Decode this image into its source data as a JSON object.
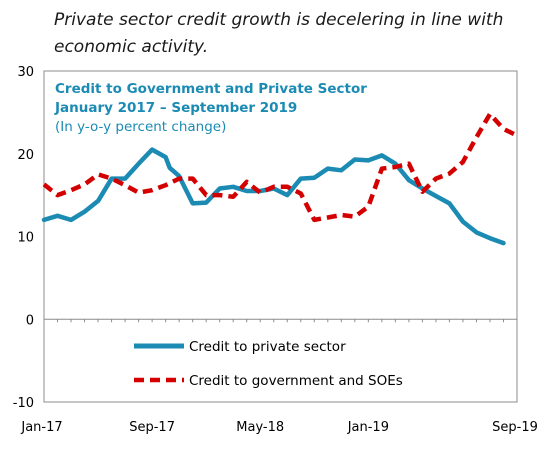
{
  "caption": "Private sector credit growth is decelering  in line with economic activity.",
  "chart_data": {
    "type": "line",
    "title": "Credit to Government and Private Sector",
    "subtitle": "January 2017 – September 2019",
    "units_note": "(In y-o-y percent change)",
    "xlabel": "",
    "ylabel": "",
    "ylim": [
      -10,
      30
    ],
    "yticks": [
      -10,
      0,
      10,
      20,
      30
    ],
    "xtick_labels": [
      "Jan-17",
      "Sep-17",
      "May-18",
      "Jan-19",
      "Sep-19"
    ],
    "xtick_months": [
      0,
      8,
      16,
      24,
      32
    ],
    "grid": false,
    "legend_position": "lower-center",
    "series": [
      {
        "name": "Credit to private sector",
        "color": "#1b8bb4",
        "style": "solid",
        "points": [
          [
            0,
            12.0
          ],
          [
            1,
            12.5
          ],
          [
            2,
            12.0
          ],
          [
            3,
            13.0
          ],
          [
            4,
            14.3
          ],
          [
            5,
            17.0
          ],
          [
            6,
            17.0
          ],
          [
            7,
            18.8
          ],
          [
            8,
            20.5
          ],
          [
            9,
            19.6
          ],
          [
            9.3,
            18.3
          ],
          [
            10,
            17.3
          ],
          [
            11,
            14.0
          ],
          [
            12,
            14.1
          ],
          [
            13,
            15.8
          ],
          [
            14,
            16.0
          ],
          [
            15,
            15.5
          ],
          [
            16,
            15.5
          ],
          [
            17,
            15.8
          ],
          [
            18,
            15.0
          ],
          [
            19,
            17.0
          ],
          [
            20,
            17.1
          ],
          [
            21,
            18.2
          ],
          [
            22,
            18.0
          ],
          [
            23,
            19.3
          ],
          [
            24,
            19.2
          ],
          [
            25,
            19.8
          ],
          [
            26,
            18.8
          ],
          [
            27,
            16.8
          ],
          [
            28,
            15.8
          ],
          [
            29,
            14.9
          ],
          [
            30,
            14.0
          ],
          [
            31,
            11.8
          ],
          [
            32,
            10.5
          ],
          [
            33,
            9.8
          ],
          [
            34,
            9.2
          ]
        ]
      },
      {
        "name": "Credit to government and SOEs",
        "color": "#d40000",
        "style": "dashed",
        "points": [
          [
            0,
            16.3
          ],
          [
            1,
            15.0
          ],
          [
            2,
            15.6
          ],
          [
            3,
            16.3
          ],
          [
            4,
            17.5
          ],
          [
            5,
            17.0
          ],
          [
            6,
            16.2
          ],
          [
            7,
            15.3
          ],
          [
            8,
            15.6
          ],
          [
            9,
            16.2
          ],
          [
            10,
            17.0
          ],
          [
            11,
            17.0
          ],
          [
            12,
            15.0
          ],
          [
            13,
            15.0
          ],
          [
            14,
            14.8
          ],
          [
            15,
            16.6
          ],
          [
            16,
            15.3
          ],
          [
            17,
            16.0
          ],
          [
            18,
            16.0
          ],
          [
            19,
            15.2
          ],
          [
            20,
            12.0
          ],
          [
            21,
            12.3
          ],
          [
            22,
            12.6
          ],
          [
            23,
            12.4
          ],
          [
            24,
            13.6
          ],
          [
            25,
            18.2
          ],
          [
            26,
            18.4
          ],
          [
            27,
            18.8
          ],
          [
            28,
            15.4
          ],
          [
            29,
            17.0
          ],
          [
            30,
            17.6
          ],
          [
            31,
            19.0
          ],
          [
            32,
            22.0
          ],
          [
            33,
            24.8
          ],
          [
            34,
            23.0
          ],
          [
            35,
            22.2
          ]
        ]
      }
    ]
  }
}
